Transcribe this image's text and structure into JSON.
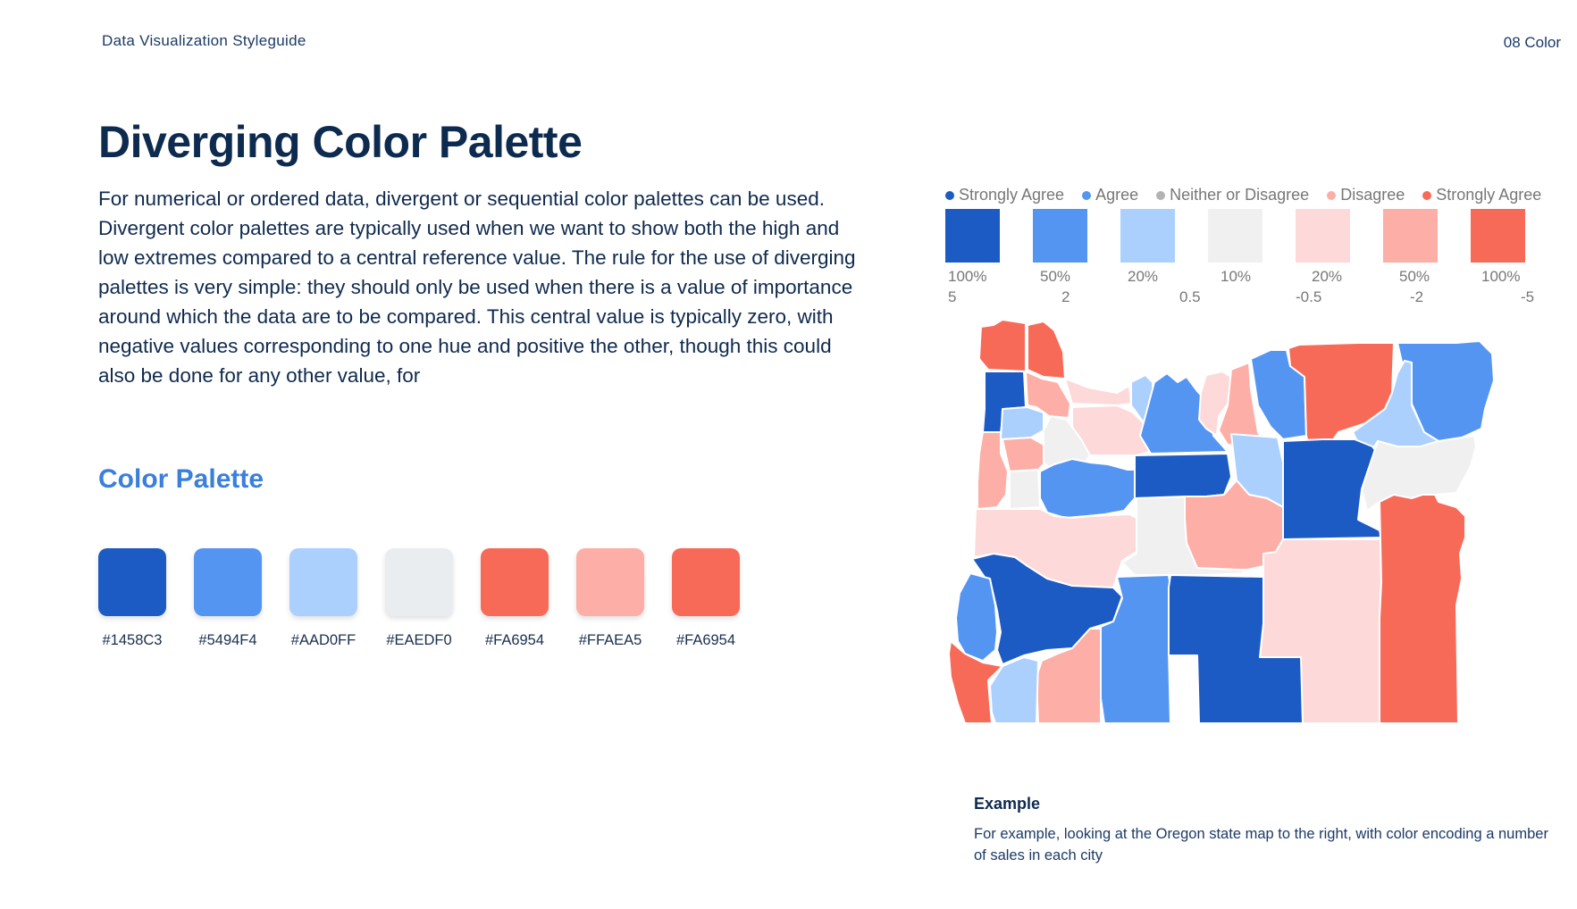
{
  "header": {
    "guide_title": "Data Visualization Styleguide",
    "section": "08 Color"
  },
  "title": "Diverging Color Palette",
  "body": "For numerical or ordered data, divergent or sequential color palettes can be used. Divergent color palettes are typically used when we want to show both the high and low extremes compared to a central reference value. The rule for the use of diverging palettes is very simple: they should only be used when there is a value of importance around which the data are to be compared.  This central value is typically zero, with negative values corresponding to one hue and positive the other, though this could also be done for any other value, for",
  "palette": {
    "title": "Color Palette",
    "swatches": [
      {
        "hex": "#1458C3",
        "color": "#1c5bc4"
      },
      {
        "hex": "#5494F4",
        "color": "#5595f2"
      },
      {
        "hex": "#AAD0FF",
        "color": "#acd0fe"
      },
      {
        "hex": "#EAEDF0",
        "color": "#eaedf0"
      },
      {
        "hex": "#FA6954",
        "color": "#f86a58"
      },
      {
        "hex": "#FFAEA5",
        "color": "#fdaea6"
      },
      {
        "hex": "#FA6954",
        "color": "#f86a58"
      }
    ]
  },
  "legend": [
    {
      "label": "Strongly Agree",
      "color": "#1c5bc4"
    },
    {
      "label": "Agree",
      "color": "#5595f2"
    },
    {
      "label": "Neither or Disagree",
      "color": "#b3b3b3"
    },
    {
      "label": "Disagree",
      "color": "#fdaea6"
    },
    {
      "label": "Strongly Agree",
      "color": "#f86a58"
    }
  ],
  "scale": {
    "boxes": [
      {
        "color": "#1c5bc4",
        "pct": "100%"
      },
      {
        "color": "#5595f2",
        "pct": "50%"
      },
      {
        "color": "#acd0fe",
        "pct": "20%"
      },
      {
        "color": "#f0f0f0",
        "pct": "10%"
      },
      {
        "color": "#fdd9d9",
        "pct": "20%"
      },
      {
        "color": "#fdaea6",
        "pct": "50%"
      },
      {
        "color": "#f86a58",
        "pct": "100%"
      }
    ],
    "values": [
      "5",
      "2",
      "0.5",
      "-0.5",
      "-2",
      "-5"
    ]
  },
  "example": {
    "title": "Example",
    "text": "For example, looking at the Oregon state map to the right, with color encoding a number of sales in each city"
  },
  "map_colors": {
    "strong_blue": "#1c5bc4",
    "blue": "#5595f2",
    "light_blue": "#acd0fe",
    "neutral": "#f0f0f0",
    "light_red": "#fdd9d9",
    "red": "#fdaea6",
    "strong_red": "#f86a58"
  }
}
